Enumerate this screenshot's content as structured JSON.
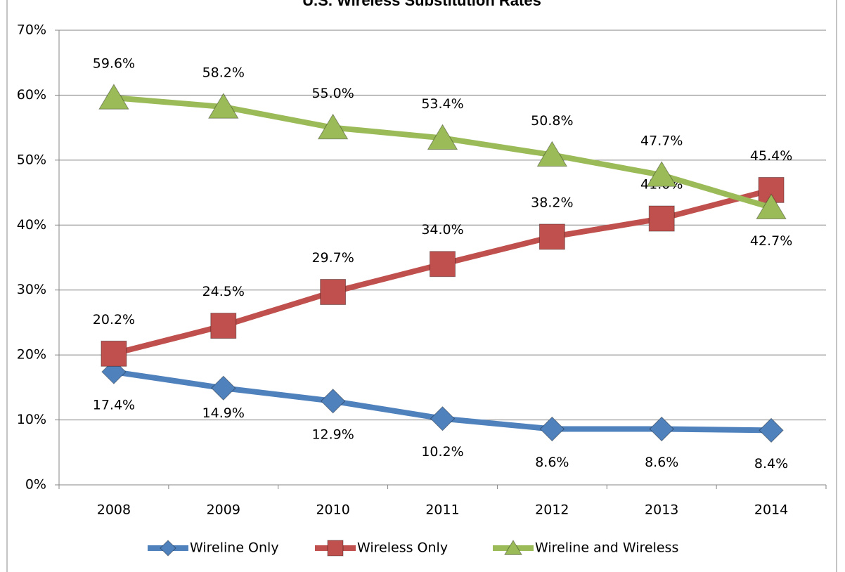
{
  "chart_data": {
    "type": "line",
    "title": "U.S. Wireless Substitution Rates",
    "categories": [
      "2008",
      "2009",
      "2010",
      "2011",
      "2012",
      "2013",
      "2014"
    ],
    "series": [
      {
        "name": "Wireline Only",
        "color": "#4f81bd",
        "marker": "diamond",
        "values": [
          17.4,
          14.9,
          12.9,
          10.2,
          8.6,
          8.6,
          8.4
        ],
        "value_labels": [
          "17.4%",
          "14.9%",
          "12.9%",
          "10.2%",
          "8.6%",
          "8.6%",
          "8.4%"
        ]
      },
      {
        "name": "Wireless Only",
        "color": "#c0504d",
        "marker": "square",
        "values": [
          20.2,
          24.5,
          29.7,
          34.0,
          38.2,
          41.0,
          45.4
        ],
        "value_labels": [
          "20.2%",
          "24.5%",
          "29.7%",
          "34.0%",
          "38.2%",
          "41.0%",
          "45.4%"
        ]
      },
      {
        "name": "Wireline and Wireless",
        "color": "#9bbb59",
        "marker": "triangle",
        "values": [
          59.6,
          58.2,
          55.0,
          53.4,
          50.8,
          47.7,
          42.7
        ],
        "value_labels": [
          "59.6%",
          "58.2%",
          "55.0%",
          "53.4%",
          "50.8%",
          "47.7%",
          "42.7%"
        ]
      }
    ],
    "ylim": [
      0,
      70
    ],
    "yticks": [
      {
        "value": 0,
        "label": "0%"
      },
      {
        "value": 10,
        "label": "10%"
      },
      {
        "value": 20,
        "label": "20%"
      },
      {
        "value": 30,
        "label": "30%"
      },
      {
        "value": 40,
        "label": "40%"
      },
      {
        "value": 50,
        "label": "50%"
      },
      {
        "value": 60,
        "label": "60%"
      },
      {
        "value": 70,
        "label": "70%"
      }
    ],
    "grid": true,
    "legend": "bottom"
  }
}
